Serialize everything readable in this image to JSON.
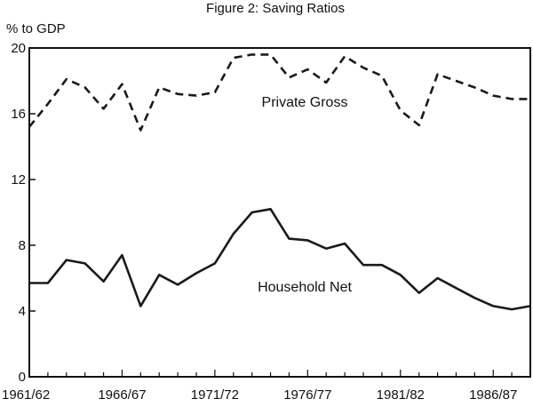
{
  "chart_data": {
    "type": "line",
    "title": "Figure 2: Saving Ratios",
    "ylabel": "% to GDP",
    "xlabel": "",
    "ylim": [
      0,
      20
    ],
    "yticks": [
      0,
      4,
      8,
      12,
      16,
      20
    ],
    "xlim": [
      0,
      27
    ],
    "x_tick_labels": [
      {
        "index": 0,
        "label": "1961/62"
      },
      {
        "index": 5,
        "label": "1966/67"
      },
      {
        "index": 10,
        "label": "1971/72"
      },
      {
        "index": 15,
        "label": "1976/77"
      },
      {
        "index": 20,
        "label": "1981/82"
      },
      {
        "index": 25,
        "label": "1986/87"
      }
    ],
    "series": [
      {
        "name": "Private Gross",
        "style": "dashed",
        "x": [
          0,
          1,
          2,
          3,
          4,
          5,
          6,
          7,
          8,
          9,
          10,
          11,
          12,
          13,
          14,
          15,
          16,
          17,
          18,
          19,
          20,
          21,
          22,
          23,
          24,
          25,
          26,
          27
        ],
        "values": [
          15.2,
          16.6,
          18.1,
          17.6,
          16.3,
          17.8,
          15.0,
          17.6,
          17.2,
          17.1,
          17.3,
          19.4,
          19.6,
          19.6,
          18.2,
          18.7,
          17.9,
          19.5,
          18.8,
          18.3,
          16.2,
          15.3,
          18.4,
          18.0,
          17.6,
          17.1,
          16.9,
          16.9
        ],
        "label_text": "Private Gross"
      },
      {
        "name": "Household Net",
        "style": "solid",
        "x": [
          0,
          1,
          2,
          3,
          4,
          5,
          6,
          7,
          8,
          9,
          10,
          11,
          12,
          13,
          14,
          15,
          16,
          17,
          18,
          19,
          20,
          21,
          22,
          23,
          24,
          25,
          26,
          27
        ],
        "values": [
          5.7,
          5.7,
          7.1,
          6.9,
          5.8,
          7.4,
          4.3,
          6.2,
          5.6,
          6.3,
          6.9,
          8.7,
          10.0,
          10.2,
          8.4,
          8.3,
          7.8,
          8.1,
          6.8,
          6.8,
          6.2,
          5.1,
          6.0,
          5.4,
          4.8,
          4.3,
          4.1,
          4.3
        ],
        "label_text": "Household Net"
      }
    ]
  }
}
